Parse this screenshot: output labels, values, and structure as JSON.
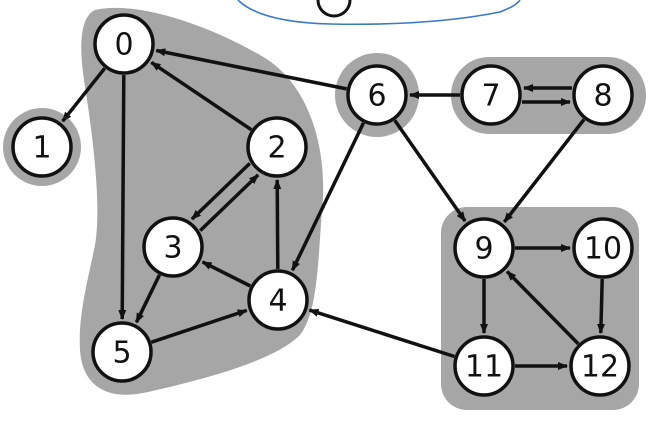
{
  "colors": {
    "background": "#ffffff",
    "region_fill": "#a6a6a6",
    "node_fill": "#ffffff",
    "node_stroke": "#111111",
    "edge": "#111111",
    "top_curve": "#3a78c9"
  },
  "nodes": [
    {
      "id": "0",
      "label": "0"
    },
    {
      "id": "1",
      "label": "1"
    },
    {
      "id": "2",
      "label": "2"
    },
    {
      "id": "3",
      "label": "3"
    },
    {
      "id": "4",
      "label": "4"
    },
    {
      "id": "5",
      "label": "5"
    },
    {
      "id": "6",
      "label": "6"
    },
    {
      "id": "7",
      "label": "7"
    },
    {
      "id": "8",
      "label": "8"
    },
    {
      "id": "9",
      "label": "9"
    },
    {
      "id": "10",
      "label": "10"
    },
    {
      "id": "11",
      "label": "11"
    },
    {
      "id": "12",
      "label": "12"
    }
  ],
  "edges": [
    {
      "from": "0",
      "to": "1"
    },
    {
      "from": "0",
      "to": "5"
    },
    {
      "from": "2",
      "to": "0"
    },
    {
      "from": "2",
      "to": "3"
    },
    {
      "from": "3",
      "to": "2"
    },
    {
      "from": "3",
      "to": "5"
    },
    {
      "from": "4",
      "to": "2"
    },
    {
      "from": "4",
      "to": "3"
    },
    {
      "from": "5",
      "to": "4"
    },
    {
      "from": "6",
      "to": "0"
    },
    {
      "from": "6",
      "to": "4"
    },
    {
      "from": "6",
      "to": "9"
    },
    {
      "from": "7",
      "to": "6"
    },
    {
      "from": "7",
      "to": "8"
    },
    {
      "from": "8",
      "to": "7"
    },
    {
      "from": "8",
      "to": "9"
    },
    {
      "from": "9",
      "to": "10"
    },
    {
      "from": "9",
      "to": "11"
    },
    {
      "from": "10",
      "to": "12"
    },
    {
      "from": "11",
      "to": "4"
    },
    {
      "from": "11",
      "to": "12"
    },
    {
      "from": "12",
      "to": "9"
    }
  ],
  "components": [
    {
      "members": [
        "0",
        "2",
        "3",
        "4",
        "5"
      ]
    },
    {
      "members": [
        "1"
      ]
    },
    {
      "members": [
        "6"
      ]
    },
    {
      "members": [
        "7",
        "8"
      ]
    },
    {
      "members": [
        "9",
        "10",
        "11",
        "12"
      ]
    }
  ]
}
